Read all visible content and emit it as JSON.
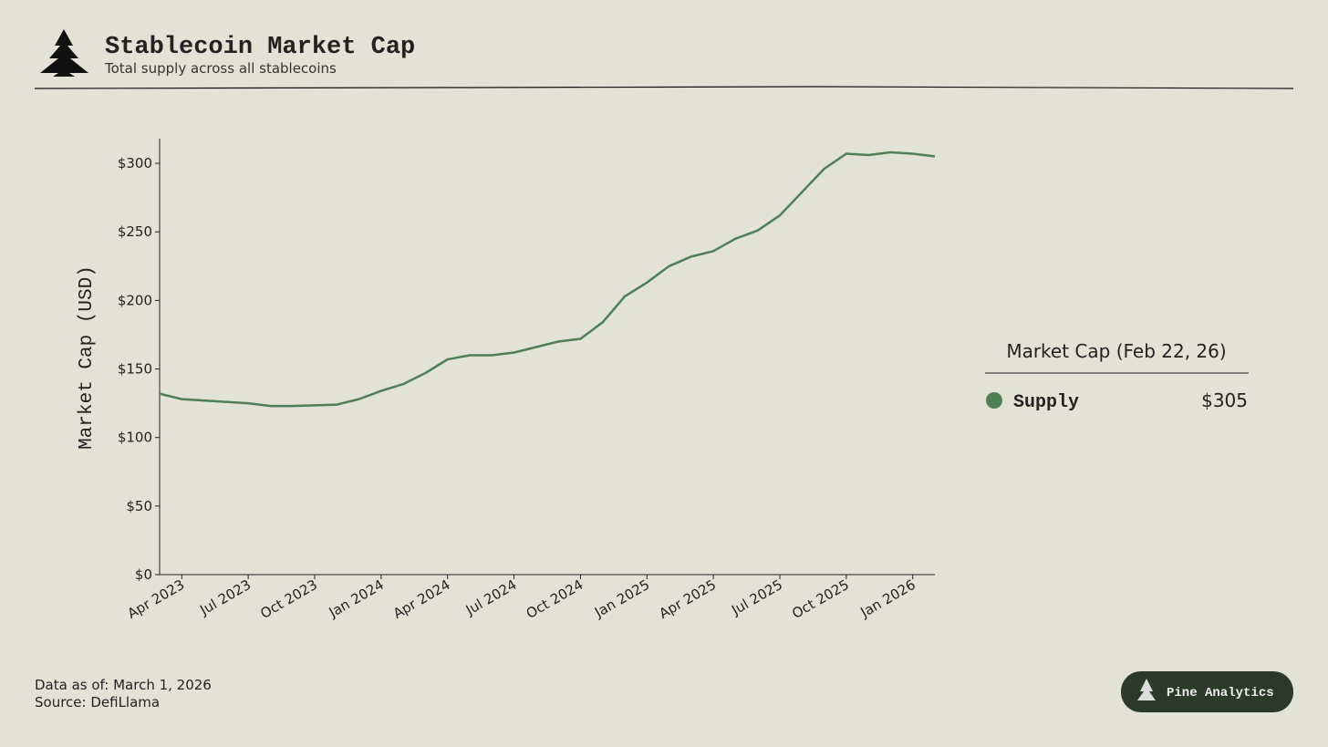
{
  "header": {
    "title": "Stablecoin Market Cap",
    "subtitle": "Total supply across all stablecoins"
  },
  "chart_data": {
    "type": "line",
    "y_label": "Market Cap (USD)",
    "x": [
      "2023-03",
      "2023-04",
      "2023-05",
      "2023-06",
      "2023-07",
      "2023-08",
      "2023-09",
      "2023-10",
      "2023-11",
      "2023-12",
      "2024-01",
      "2024-02",
      "2024-03",
      "2024-04",
      "2024-05",
      "2024-06",
      "2024-07",
      "2024-08",
      "2024-09",
      "2024-10",
      "2024-11",
      "2024-12",
      "2025-01",
      "2025-02",
      "2025-03",
      "2025-04",
      "2025-05",
      "2025-06",
      "2025-07",
      "2025-08",
      "2025-09",
      "2025-10",
      "2025-11",
      "2025-12",
      "2026-01",
      "2026-02"
    ],
    "series": [
      {
        "name": "Supply",
        "color": "#4d8055",
        "values": [
          132,
          128,
          127,
          126,
          125,
          123,
          123,
          123.5,
          124,
          128,
          134,
          139,
          147,
          157,
          160,
          160,
          162,
          166,
          170,
          172,
          184,
          203,
          213,
          225,
          232,
          236,
          245,
          251,
          262,
          279,
          296,
          307,
          306,
          308,
          307,
          305
        ]
      }
    ],
    "xlim": [
      "2023-03",
      "2026-02"
    ],
    "xticks": [
      {
        "value": "2023-04",
        "label": "Apr 2023"
      },
      {
        "value": "2023-07",
        "label": "Jul 2023"
      },
      {
        "value": "2023-10",
        "label": "Oct 2023"
      },
      {
        "value": "2024-01",
        "label": "Jan 2024"
      },
      {
        "value": "2024-04",
        "label": "Apr 2024"
      },
      {
        "value": "2024-07",
        "label": "Jul 2024"
      },
      {
        "value": "2024-10",
        "label": "Oct 2024"
      },
      {
        "value": "2025-01",
        "label": "Jan 2025"
      },
      {
        "value": "2025-04",
        "label": "Apr 2025"
      },
      {
        "value": "2025-07",
        "label": "Jul 2025"
      },
      {
        "value": "2025-10",
        "label": "Oct 2025"
      },
      {
        "value": "2026-01",
        "label": "Jan 2026"
      }
    ],
    "ylim": [
      0,
      318
    ],
    "yticks": [
      {
        "value": 0,
        "label": "$0"
      },
      {
        "value": 50,
        "label": "$50"
      },
      {
        "value": 100,
        "label": "$100"
      },
      {
        "value": 150,
        "label": "$150"
      },
      {
        "value": 200,
        "label": "$200"
      },
      {
        "value": 250,
        "label": "$250"
      },
      {
        "value": 300,
        "label": "$300"
      }
    ],
    "grid": false,
    "legend": {
      "title": "Market Cap (Feb 22, 26)",
      "position": "right",
      "value_label": "$305"
    }
  },
  "footer": {
    "date_note": "Data as of: March 1, 2026",
    "source": "Source: DefiLlama",
    "brand": "Pine Analytics"
  }
}
